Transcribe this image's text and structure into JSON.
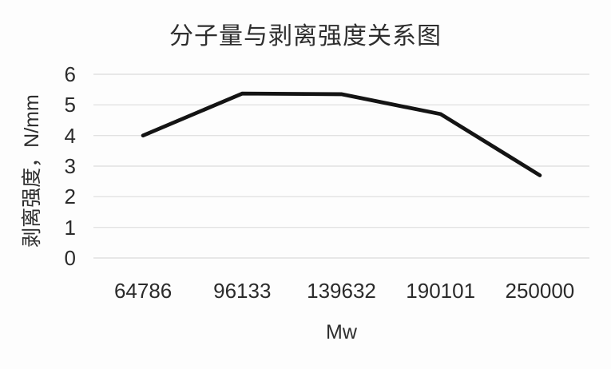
{
  "chart_data": {
    "type": "line",
    "title": "分子量与剥离强度关系图",
    "xlabel": "Mw",
    "ylabel": "剥离强度，N/mm",
    "categories": [
      "64786",
      "96133",
      "139632",
      "190101",
      "250000"
    ],
    "series": [
      {
        "name": "剥离强度",
        "values": [
          4.0,
          5.37,
          5.35,
          4.7,
          2.7
        ]
      }
    ],
    "ylim": [
      0,
      6
    ],
    "yticks": [
      0,
      1,
      2,
      3,
      4,
      5,
      6
    ],
    "grid": true,
    "legend_position": "none",
    "marker": "none",
    "line_color": "#141414",
    "gridline_color": "#e2e2e2",
    "text_color": "#2b2b2b"
  }
}
